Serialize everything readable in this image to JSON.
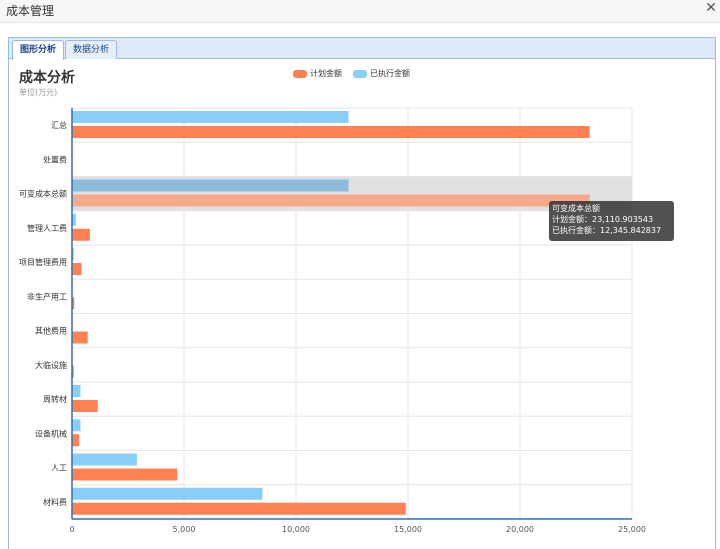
{
  "window": {
    "title": "成本管理",
    "close_glyph": "✕"
  },
  "tabs": [
    {
      "label": "图形分析",
      "active": true
    },
    {
      "label": "数据分析",
      "active": false
    }
  ],
  "chart_header": {
    "title": "成本分析",
    "unit": "单位(万元)"
  },
  "colors": {
    "planned": "#ff8052",
    "executed": "#87cefa",
    "highlight_band": "#e0e0e0",
    "axis": "#2f6fb5"
  },
  "tooltip": {
    "category": "可变成本总额",
    "line1": "计划金额：23,110.903543",
    "line2": "已执行金额：12,345.842837"
  },
  "chart_data": {
    "type": "bar",
    "orientation": "horizontal",
    "categories": [
      "汇总",
      "处置费",
      "可变成本总额",
      "管理人工费",
      "项目管理费用",
      "非生产用工",
      "其他费用",
      "大临设施",
      "周转材",
      "设备机械",
      "人工",
      "材料费"
    ],
    "series": [
      {
        "name": "计划金额",
        "values": [
          23110.903543,
          0,
          23110.903543,
          800,
          420,
          100,
          700,
          80,
          1150,
          320,
          4700,
          14900
        ]
      },
      {
        "name": "已执行金额",
        "values": [
          12345.842837,
          0,
          12345.842837,
          170,
          80,
          0,
          0,
          0,
          380,
          380,
          2900,
          8500
        ]
      }
    ],
    "xlim": [
      0,
      25000
    ],
    "xticks": [
      "0",
      "5,000",
      "10,000",
      "15,000",
      "20,000",
      "25,000"
    ],
    "grid": true,
    "legend": "top-center",
    "highlighted_category": "可变成本总额"
  }
}
